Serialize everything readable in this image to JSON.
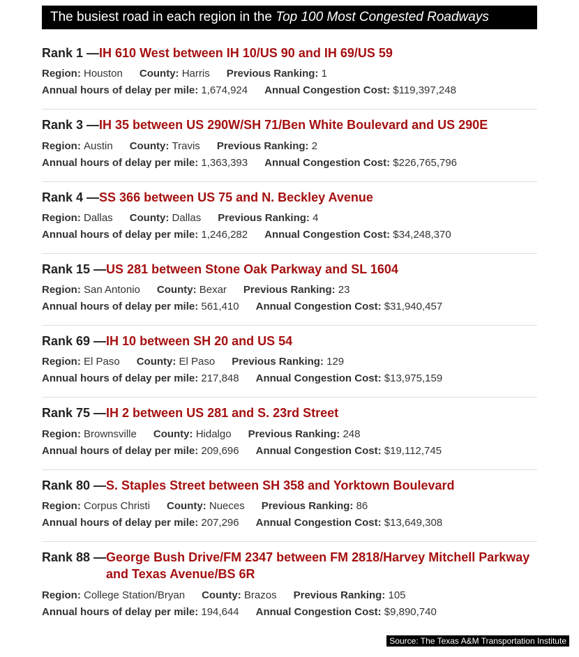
{
  "header": {
    "prefix": "The busiest road in each region in the ",
    "italic": "Top 100 Most Congested Roadways"
  },
  "labels": {
    "rank_prefix": "Rank ",
    "sep": " — ",
    "region": "Region: ",
    "county": "County: ",
    "previous_ranking": "Previous Ranking: ",
    "annual_hours": "Annual hours of delay per mile: ",
    "annual_cost": "Annual Congestion Cost: "
  },
  "colors": {
    "header_bg": "#000000",
    "header_fg": "#ffffff",
    "road_name": "#a61010",
    "text": "#333333",
    "divider": "#dddddd",
    "page_bg": "#ffffff"
  },
  "entries": [
    {
      "rank": "1",
      "road": "IH 610 West between IH 10/US 90 and IH 69/US 59",
      "region": "Houston",
      "county": "Harris",
      "previous_ranking": "1",
      "annual_hours": "1,674,924",
      "annual_cost": "$119,397,248"
    },
    {
      "rank": "3",
      "road": "IH 35 between US 290W/SH 71/Ben White Boulevard and US 290E",
      "region": "Austin",
      "county": "Travis",
      "previous_ranking": "2",
      "annual_hours": "1,363,393",
      "annual_cost": "$226,765,796"
    },
    {
      "rank": "4",
      "road": "SS 366 between US 75 and N. Beckley Avenue",
      "region": "Dallas",
      "county": "Dallas",
      "previous_ranking": "4",
      "annual_hours": "1,246,282",
      "annual_cost": "$34,248,370"
    },
    {
      "rank": "15",
      "road": "US 281 between Stone Oak Parkway and SL 1604",
      "region": "San Antonio",
      "county": "Bexar",
      "previous_ranking": "23",
      "annual_hours": "561,410",
      "annual_cost": "$31,940,457"
    },
    {
      "rank": "69",
      "road": "IH 10 between SH 20 and US 54",
      "region": "El Paso",
      "county": "El Paso",
      "previous_ranking": "129",
      "annual_hours": "217,848",
      "annual_cost": "$13,975,159"
    },
    {
      "rank": "75",
      "road": "IH 2 between US 281 and S. 23rd Street",
      "region": "Brownsville",
      "county": "Hidalgo",
      "previous_ranking": "248",
      "annual_hours": "209,696",
      "annual_cost": "$19,112,745"
    },
    {
      "rank": "80",
      "road": "S. Staples Street between SH 358 and Yorktown Boulevard",
      "region": "Corpus Christi",
      "county": "Nueces",
      "previous_ranking": "86",
      "annual_hours": "207,296",
      "annual_cost": "$13,649,308"
    },
    {
      "rank": "88",
      "road": "George Bush Drive/FM 2347 between FM 2818/Harvey Mitchell Parkway and Texas Avenue/BS 6R",
      "region": "College Station/Bryan",
      "county": "Brazos",
      "previous_ranking": "105",
      "annual_hours": "194,644",
      "annual_cost": "$9,890,740"
    }
  ],
  "source": "Source: The Texas A&M Transportation Institute"
}
